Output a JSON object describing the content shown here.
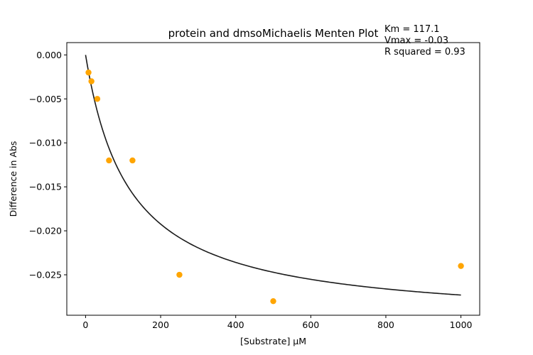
{
  "chart_data": {
    "type": "scatter",
    "title": "protein and dmsoMichaelis Menten Plot",
    "xlabel": "[Substrate] µM",
    "ylabel": "Difference in Abs",
    "xlim": [
      -50,
      1050
    ],
    "ylim": [
      -0.0296,
      0.0014
    ],
    "xticks": [
      0,
      200,
      400,
      600,
      800,
      1000
    ],
    "yticks": [
      0.0,
      -0.005,
      -0.01,
      -0.015,
      -0.02,
      -0.025
    ],
    "ytick_labels": [
      "0.000",
      "−0.005",
      "−0.010",
      "−0.015",
      "−0.020",
      "−0.025"
    ],
    "grid": false,
    "series": [
      {
        "kind": "scatter",
        "color": "#ffa500",
        "x": [
          7.8,
          15.6,
          31.25,
          62.5,
          125,
          250,
          500,
          1000
        ],
        "y": [
          -0.002,
          -0.003,
          -0.005,
          -0.012,
          -0.012,
          -0.025,
          -0.028,
          -0.024
        ]
      },
      {
        "kind": "fit",
        "color": "#1a1a1a",
        "model": "michaelis-menten",
        "Vmax": -0.0305,
        "Km": 117.1,
        "x_range": [
          0,
          1000
        ]
      }
    ],
    "annotations": [
      "Km = 117.1",
      "Vmax = -0.03",
      "R squared = 0.93"
    ]
  }
}
